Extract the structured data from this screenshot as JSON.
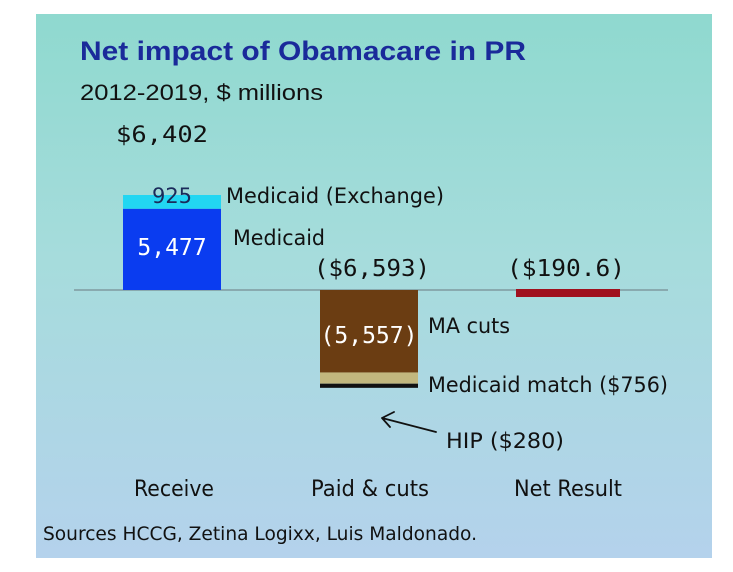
{
  "chart_data": {
    "type": "waterfall",
    "title": "Net impact of Obamacare in PR",
    "subtitle": "2012-2019, $ millions",
    "categories": [
      "Receive",
      "Paid & cuts",
      "Net Result"
    ],
    "colors": {
      "medicaid": "#0a3cf0",
      "exchange": "#22d6f2",
      "ma_cuts": "#6b3d12",
      "medicaid_match": "#c2b77e",
      "hip": "#111111",
      "net": "#a0101e",
      "baseline": "#6a7a80",
      "title": "#1a2a9a"
    },
    "segments": [
      {
        "key": "medicaid",
        "category": "Receive",
        "value": 5477,
        "label": "5,477",
        "name": "Medicaid",
        "color_key": "medicaid"
      },
      {
        "key": "exchange",
        "category": "Receive",
        "value": 925,
        "label": "925",
        "name": "Medicaid (Exchange)",
        "color_key": "exchange"
      },
      {
        "key": "ma_cuts",
        "category": "Paid & cuts",
        "value": -5557,
        "label": "(5,557)",
        "name": "MA cuts",
        "color_key": "ma_cuts"
      },
      {
        "key": "medicaid_match",
        "category": "Paid & cuts",
        "value": -756,
        "label": "",
        "name": "Medicaid match ($756)",
        "color_key": "medicaid_match"
      },
      {
        "key": "hip",
        "category": "Paid & cuts",
        "value": -280,
        "label": "",
        "name": "HIP ($280)",
        "color_key": "hip"
      },
      {
        "key": "net",
        "category": "Net Result",
        "value": -190.6,
        "label": "",
        "name": "",
        "color_key": "net"
      }
    ],
    "totals": [
      {
        "category": "Receive",
        "value": 6402,
        "label": "$6,402"
      },
      {
        "category": "Paid & cuts",
        "value": -6593,
        "label": "($6,593)"
      },
      {
        "category": "Net Result",
        "value": -190.6,
        "label": "($190.6)"
      }
    ],
    "ylim": [
      -9000,
      8000
    ],
    "grid": false,
    "legend": "none"
  },
  "source": "Sources HCCG, Zetina Logixx, Luis Maldonado."
}
